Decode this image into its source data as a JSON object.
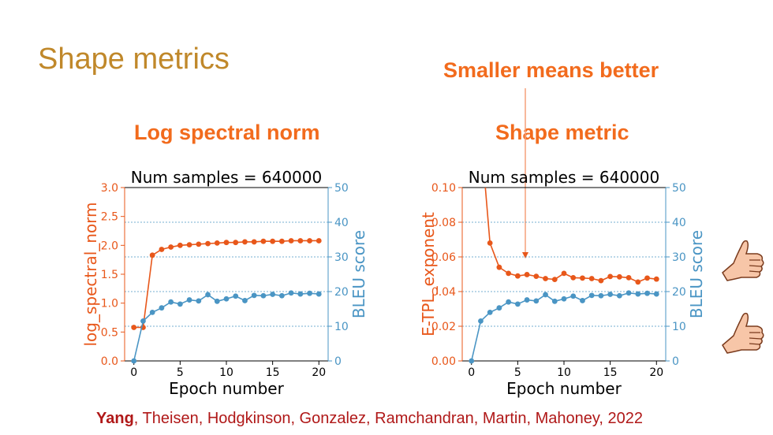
{
  "slide": {
    "title": "Shape metrics",
    "callout": "Smaller means better",
    "left_subtitle": "Log spectral norm",
    "right_subtitle": "Shape metric",
    "citation_first": "Yang",
    "citation_rest": ", Theisen, Hodgkinson, Gonzalez, Ramchandran, Martin, Mahoney, 2022"
  },
  "colors": {
    "title": "#c0882a",
    "accent": "#f26b1d",
    "metric": "#e8571a",
    "bleu": "#4a95c4",
    "citation": "#b01818"
  },
  "icons": [
    "thumbs-up-icon",
    "thumbs-up-icon"
  ],
  "chart_data": [
    {
      "type": "line",
      "title": "Num samples = 640000",
      "xlabel": "Epoch number",
      "ylabel": "log_spectral_norm",
      "y2label": "BLEU score",
      "xlim": [
        -1,
        21
      ],
      "ylim": [
        0,
        3.0
      ],
      "y2lim": [
        0,
        50
      ],
      "xticks": [
        0,
        5,
        10,
        15,
        20
      ],
      "yticks": [
        0.0,
        0.5,
        1.0,
        1.5,
        2.0,
        2.5,
        3.0
      ],
      "ytick_labels": [
        "0.0",
        "0.5",
        "1.0",
        "1.5",
        "2.0",
        "2.5",
        "3.0"
      ],
      "y2ticks": [
        0,
        10,
        20,
        30,
        40,
        50
      ],
      "y2gridlines": [
        10,
        20,
        30,
        40
      ],
      "series": [
        {
          "name": "log_spectral_norm",
          "axis": "left",
          "x": [
            0,
            1,
            2,
            3,
            4,
            5,
            6,
            7,
            8,
            9,
            10,
            11,
            12,
            13,
            14,
            15,
            16,
            17,
            18,
            19,
            20
          ],
          "values": [
            0.58,
            0.58,
            1.83,
            1.93,
            1.97,
            2.0,
            2.01,
            2.02,
            2.03,
            2.04,
            2.05,
            2.05,
            2.06,
            2.06,
            2.07,
            2.07,
            2.07,
            2.08,
            2.08,
            2.08,
            2.08
          ]
        },
        {
          "name": "BLEU score",
          "axis": "right",
          "x": [
            0,
            1,
            2,
            3,
            4,
            5,
            6,
            7,
            8,
            9,
            10,
            11,
            12,
            13,
            14,
            15,
            16,
            17,
            18,
            19,
            20
          ],
          "values": [
            0,
            11.5,
            14,
            15.3,
            17,
            16.4,
            17.6,
            17.3,
            19.1,
            17.2,
            17.9,
            18.7,
            17.4,
            18.9,
            18.8,
            19.2,
            18.8,
            19.6,
            19.3,
            19.5,
            19.3
          ]
        }
      ]
    },
    {
      "type": "line",
      "title": "Num samples = 640000",
      "xlabel": "Epoch number",
      "ylabel": "E-TPL_exponent",
      "y2label": "BLEU score",
      "xlim": [
        -1,
        21
      ],
      "ylim": [
        0,
        0.1
      ],
      "y2lim": [
        0,
        50
      ],
      "xticks": [
        0,
        5,
        10,
        15,
        20
      ],
      "yticks": [
        0.0,
        0.02,
        0.04,
        0.06,
        0.08,
        0.1
      ],
      "ytick_labels": [
        "0.00",
        "0.02",
        "0.04",
        "0.06",
        "0.08",
        "0.10"
      ],
      "y2ticks": [
        0,
        10,
        20,
        30,
        40,
        50
      ],
      "y2gridlines": [
        10,
        20,
        30,
        40
      ],
      "series": [
        {
          "name": "E-TPL_exponent",
          "axis": "left",
          "x": [
            1.5,
            2,
            3,
            4,
            5,
            6,
            7,
            8,
            9,
            10,
            11,
            12,
            13,
            14,
            15,
            16,
            17,
            18,
            19,
            20
          ],
          "values": [
            0.1,
            0.068,
            0.054,
            0.0505,
            0.049,
            0.0498,
            0.0488,
            0.0475,
            0.047,
            0.0505,
            0.048,
            0.0478,
            0.0475,
            0.0463,
            0.0487,
            0.0485,
            0.048,
            0.0455,
            0.0478,
            0.0472
          ]
        },
        {
          "name": "BLEU score",
          "axis": "right",
          "x": [
            0,
            1,
            2,
            3,
            4,
            5,
            6,
            7,
            8,
            9,
            10,
            11,
            12,
            13,
            14,
            15,
            16,
            17,
            18,
            19,
            20
          ],
          "values": [
            0,
            11.5,
            14,
            15.3,
            17,
            16.4,
            17.6,
            17.3,
            19.1,
            17.2,
            17.9,
            18.7,
            17.4,
            18.9,
            18.8,
            19.2,
            18.8,
            19.6,
            19.3,
            19.5,
            19.3
          ]
        }
      ]
    }
  ]
}
